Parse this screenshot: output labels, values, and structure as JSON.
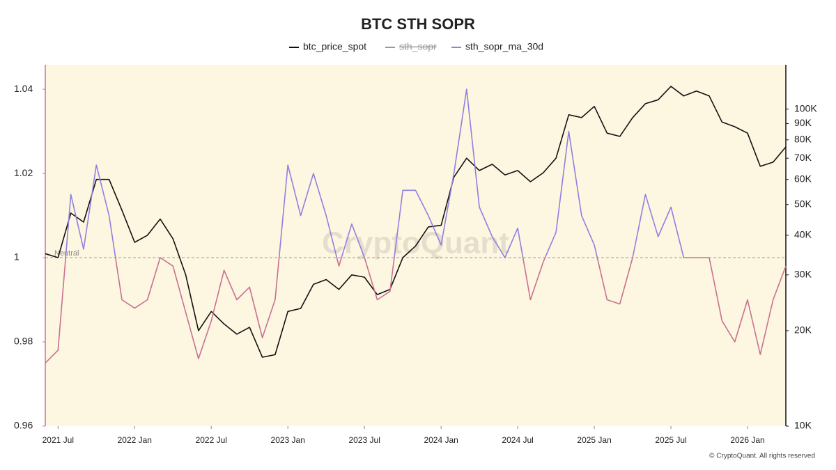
{
  "chart_data": {
    "type": "line",
    "title": "BTC STH SOPR",
    "x": [
      "2021-06",
      "2021-07",
      "2021-08",
      "2021-09",
      "2021-10",
      "2021-11",
      "2021-12",
      "2022-01",
      "2022-02",
      "2022-03",
      "2022-04",
      "2022-05",
      "2022-06",
      "2022-07",
      "2022-08",
      "2022-09",
      "2022-10",
      "2022-11",
      "2022-12",
      "2023-01",
      "2023-02",
      "2023-03",
      "2023-04",
      "2023-05",
      "2023-06",
      "2023-07",
      "2023-08",
      "2023-09",
      "2023-10",
      "2023-11",
      "2023-12",
      "2024-01",
      "2024-02",
      "2024-03",
      "2024-04",
      "2024-05",
      "2024-06",
      "2024-07",
      "2024-08",
      "2024-09",
      "2024-10",
      "2024-11",
      "2024-12",
      "2025-01",
      "2025-02",
      "2025-03",
      "2025-04",
      "2025-05",
      "2025-06",
      "2025-07",
      "2025-08",
      "2025-09",
      "2025-10",
      "2025-11",
      "2025-12",
      "2026-01",
      "2026-02",
      "2026-03",
      "2026-04"
    ],
    "series": [
      {
        "name": "btc_price_spot",
        "color": "#111111",
        "axis": "y2",
        "values": [
          35000,
          34000,
          47000,
          44000,
          60000,
          60000,
          48000,
          38000,
          40000,
          45000,
          39000,
          30000,
          20000,
          23000,
          21000,
          19500,
          20500,
          16500,
          16800,
          23000,
          23500,
          28000,
          29000,
          27000,
          30000,
          29500,
          26000,
          27000,
          34000,
          37000,
          42500,
          43000,
          61000,
          70000,
          64000,
          67000,
          62000,
          64000,
          59000,
          63000,
          70000,
          96000,
          94000,
          102000,
          84000,
          82000,
          94000,
          104000,
          107000,
          118000,
          110000,
          114000,
          110000,
          91000,
          88000,
          84000,
          66000,
          68000,
          76000
        ]
      },
      {
        "name": "sth_sopr",
        "color": "#999999",
        "visible": false
      },
      {
        "name": "sth_sopr_ma_30d",
        "color": "#8f80e0",
        "color_below": "#c9708f",
        "values": [
          0.975,
          0.978,
          1.015,
          1.002,
          1.022,
          1.01,
          0.99,
          0.988,
          0.99,
          1.0,
          0.998,
          0.987,
          0.976,
          0.985,
          0.997,
          0.99,
          0.993,
          0.981,
          0.99,
          1.022,
          1.01,
          1.02,
          1.01,
          0.998,
          1.008,
          1.0,
          0.99,
          0.992,
          1.016,
          1.016,
          1.01,
          1.003,
          1.02,
          1.04,
          1.012,
          1.005,
          1.0,
          1.007,
          0.99,
          0.999,
          1.006,
          1.03,
          1.01,
          1.003,
          0.99,
          0.989,
          1.0,
          1.015,
          1.005,
          1.012,
          1.0,
          1.0,
          1.0,
          0.985,
          0.98,
          0.99,
          0.977,
          0.99,
          0.998
        ]
      }
    ],
    "xlim": [
      "2021-06",
      "2026-04"
    ],
    "xticks": [
      {
        "value": "2021-07",
        "label": "2021 Jul"
      },
      {
        "value": "2022-01",
        "label": "2022 Jan"
      },
      {
        "value": "2022-07",
        "label": "2022 Jul"
      },
      {
        "value": "2023-01",
        "label": "2023 Jan"
      },
      {
        "value": "2023-07",
        "label": "2023 Jul"
      },
      {
        "value": "2024-01",
        "label": "2024 Jan"
      },
      {
        "value": "2024-07",
        "label": "2024 Jul"
      },
      {
        "value": "2025-01",
        "label": "2025 Jan"
      },
      {
        "value": "2025-07",
        "label": "2025 Jul"
      },
      {
        "value": "2026-01",
        "label": "2026 Jan"
      }
    ],
    "ylim": [
      0.96,
      1.0458
    ],
    "yticks": [
      0.96,
      0.98,
      1,
      1.02,
      1.04
    ],
    "y2lim": [
      10000,
      138000
    ],
    "y2log": true,
    "y2ticks": [
      {
        "value": 10000,
        "label": "10K"
      },
      {
        "value": 20000,
        "label": "20K"
      },
      {
        "value": 30000,
        "label": "30K"
      },
      {
        "value": 40000,
        "label": "40K"
      },
      {
        "value": 50000,
        "label": "50K"
      },
      {
        "value": 60000,
        "label": "60K"
      },
      {
        "value": 70000,
        "label": "70K"
      },
      {
        "value": 80000,
        "label": "80K"
      },
      {
        "value": 90000,
        "label": "90K"
      },
      {
        "value": 100000,
        "label": "100K"
      }
    ],
    "reference_line": {
      "value": 1,
      "label": "Neutral"
    },
    "watermark": "CryptoQuant",
    "footer": "© CryptoQuant. All rights reserved",
    "background": "#fdf6e1"
  }
}
